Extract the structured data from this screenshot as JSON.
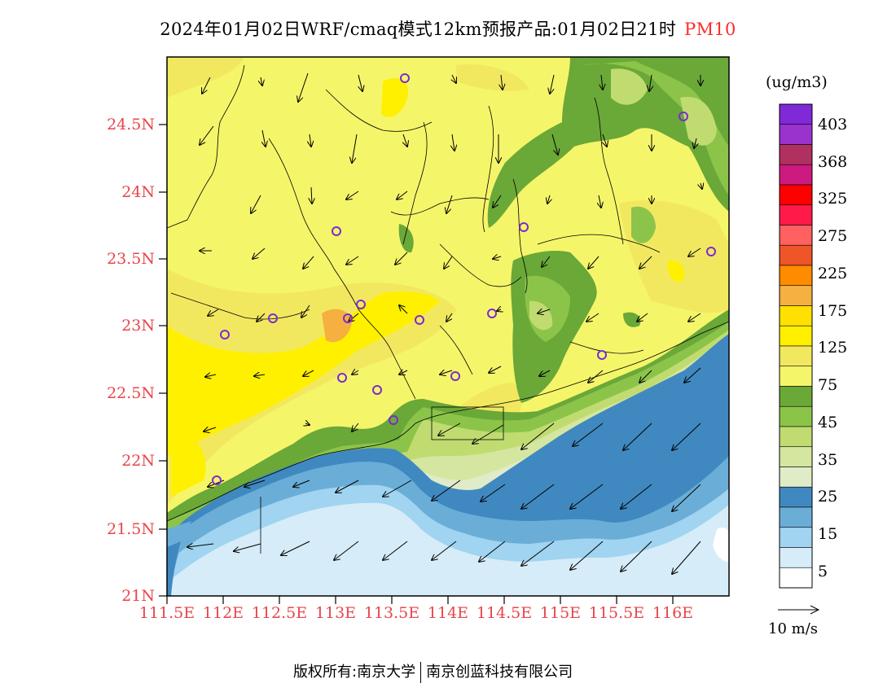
{
  "title": {
    "text": "2024年01月02日WRF/cmaq模式12km预报产品:01月02日21时",
    "variable": "PM10"
  },
  "map": {
    "lon_ticks": [
      "111.5E",
      "112E",
      "112.5E",
      "113E",
      "113.5E",
      "114E",
      "114.5E",
      "115E",
      "115.5E",
      "116E"
    ],
    "lat_ticks": [
      "21N",
      "21.5N",
      "22N",
      "22.5N",
      "23N",
      "23.5N",
      "24N",
      "24.5N"
    ],
    "tick_color": "#e8454b"
  },
  "legend": {
    "unit": "(ug/m3)",
    "labels": [
      "403",
      "368",
      "325",
      "275",
      "225",
      "175",
      "125",
      "75",
      "45",
      "35",
      "25",
      "15",
      "5"
    ],
    "colors": [
      "#7f2ad6",
      "#9a32cd",
      "#b03060",
      "#cc1a80",
      "#ff0000",
      "#ff1a4a",
      "#ff6060",
      "#ee5528",
      "#ff8c00",
      "#f5b040",
      "#ffe000",
      "#fff000",
      "#f2e860",
      "#f5f56a",
      "#6aa838",
      "#8cc44a",
      "#c0dc70",
      "#d5e6a0",
      "#e0ebc8",
      "#4088c0",
      "#6aaed8",
      "#a0d4f0",
      "#d6ecf8",
      "#ffffff"
    ],
    "scale_text": "10 m/s"
  },
  "footer": {
    "left": "版权所有:南京大学",
    "right": "南京创蓝科技有限公司"
  }
}
